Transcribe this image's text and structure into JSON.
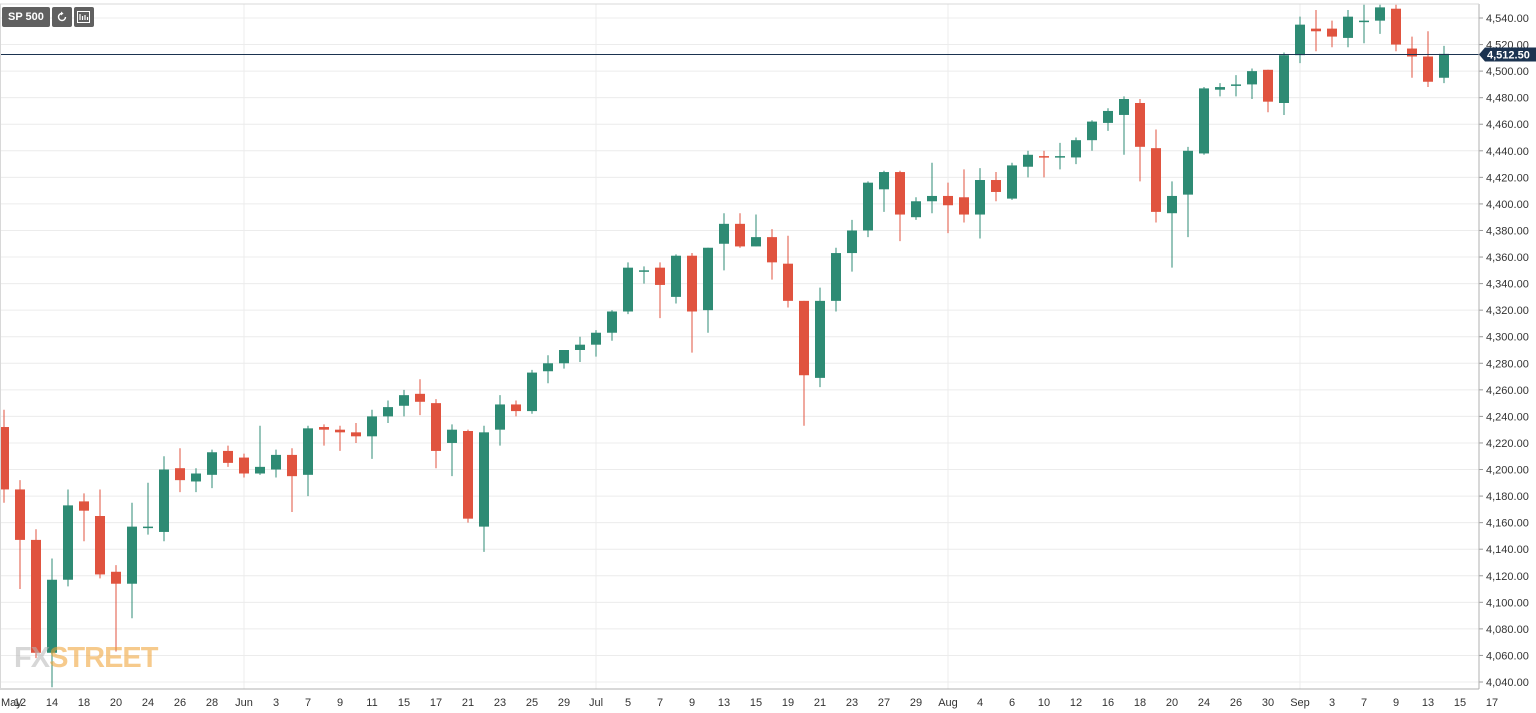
{
  "toolbar": {
    "symbol": "SP 500",
    "refresh_icon": "refresh-icon",
    "chart_type_icon": "chart-type-icon"
  },
  "logo": {
    "part1": "FX",
    "part2": "STREET"
  },
  "colors": {
    "bull": "#2e8b74",
    "bear": "#e0533f",
    "price_line": "#1b3350",
    "price_label_bg": "#1b3350",
    "grid": "#ececec",
    "axis_text": "#333333"
  },
  "chart_data": {
    "type": "candlestick",
    "current_price_label": "4,512.50",
    "current_price": 4512.5,
    "ylim": [
      4035,
      4552
    ],
    "grid": true,
    "y_ticks": [
      {
        "v": 4040,
        "label": "4,040.00"
      },
      {
        "v": 4060,
        "label": "4,060.00"
      },
      {
        "v": 4080,
        "label": "4,080.00"
      },
      {
        "v": 4100,
        "label": "4,100.00"
      },
      {
        "v": 4120,
        "label": "4,120.00"
      },
      {
        "v": 4140,
        "label": "4,140.00"
      },
      {
        "v": 4160,
        "label": "4,160.00"
      },
      {
        "v": 4180,
        "label": "4,180.00"
      },
      {
        "v": 4200,
        "label": "4,200.00"
      },
      {
        "v": 4220,
        "label": "4,220.00"
      },
      {
        "v": 4240,
        "label": "4,240.00"
      },
      {
        "v": 4260,
        "label": "4,260.00"
      },
      {
        "v": 4280,
        "label": "4,280.00"
      },
      {
        "v": 4300,
        "label": "4,300.00"
      },
      {
        "v": 4320,
        "label": "4,320.00"
      },
      {
        "v": 4340,
        "label": "4,340.00"
      },
      {
        "v": 4360,
        "label": "4,360.00"
      },
      {
        "v": 4380,
        "label": "4,380.00"
      },
      {
        "v": 4400,
        "label": "4,400.00"
      },
      {
        "v": 4420,
        "label": "4,420.00"
      },
      {
        "v": 4440,
        "label": "4,440.00"
      },
      {
        "v": 4460,
        "label": "4,460.00"
      },
      {
        "v": 4480,
        "label": "4,480.00"
      },
      {
        "v": 4500,
        "label": "4,500.00"
      },
      {
        "v": 4520,
        "label": "4,520.00"
      },
      {
        "v": 4540,
        "label": "4,540.00"
      }
    ],
    "x_ticks": [
      {
        "i": -0.5,
        "label": "May"
      },
      {
        "i": 1,
        "label": "12"
      },
      {
        "i": 3,
        "label": "14"
      },
      {
        "i": 5,
        "label": "18"
      },
      {
        "i": 7,
        "label": "20"
      },
      {
        "i": 9,
        "label": "24"
      },
      {
        "i": 11,
        "label": "26"
      },
      {
        "i": 13,
        "label": "28"
      },
      {
        "i": 15,
        "label": "Jun"
      },
      {
        "i": 17,
        "label": "3"
      },
      {
        "i": 19,
        "label": "7"
      },
      {
        "i": 21,
        "label": "9"
      },
      {
        "i": 23,
        "label": "11"
      },
      {
        "i": 25,
        "label": "15"
      },
      {
        "i": 27,
        "label": "17"
      },
      {
        "i": 29,
        "label": "21"
      },
      {
        "i": 31,
        "label": "23"
      },
      {
        "i": 33,
        "label": "25"
      },
      {
        "i": 35,
        "label": "29"
      },
      {
        "i": 37,
        "label": "Jul"
      },
      {
        "i": 39,
        "label": "5"
      },
      {
        "i": 41,
        "label": "7"
      },
      {
        "i": 43,
        "label": "9"
      },
      {
        "i": 45,
        "label": "13"
      },
      {
        "i": 47,
        "label": "15"
      },
      {
        "i": 49,
        "label": "19"
      },
      {
        "i": 51,
        "label": "21"
      },
      {
        "i": 53,
        "label": "23"
      },
      {
        "i": 55,
        "label": "27"
      },
      {
        "i": 57,
        "label": "29"
      },
      {
        "i": 59,
        "label": "Aug"
      },
      {
        "i": 61,
        "label": "4"
      },
      {
        "i": 63,
        "label": "6"
      },
      {
        "i": 65,
        "label": "10"
      },
      {
        "i": 67,
        "label": "12"
      },
      {
        "i": 69,
        "label": "16"
      },
      {
        "i": 71,
        "label": "18"
      },
      {
        "i": 73,
        "label": "20"
      },
      {
        "i": 75,
        "label": "24"
      },
      {
        "i": 77,
        "label": "26"
      },
      {
        "i": 79,
        "label": "30"
      },
      {
        "i": 81,
        "label": "Sep"
      },
      {
        "i": 83,
        "label": "3"
      },
      {
        "i": 85,
        "label": "7"
      },
      {
        "i": 87,
        "label": "9"
      },
      {
        "i": 89,
        "label": "13"
      },
      {
        "i": 91,
        "label": "15"
      },
      {
        "i": 93,
        "label": "17"
      }
    ],
    "month_separators": [
      15,
      37,
      59,
      81
    ],
    "candles": [
      {
        "o": 4232,
        "h": 4245,
        "l": 4175,
        "c": 4185
      },
      {
        "o": 4185,
        "h": 4192,
        "l": 4110,
        "c": 4147
      },
      {
        "o": 4147,
        "h": 4155,
        "l": 4058,
        "c": 4062
      },
      {
        "o": 4062,
        "h": 4133,
        "l": 4036,
        "c": 4117
      },
      {
        "o": 4117,
        "h": 4185,
        "l": 4112,
        "c": 4173
      },
      {
        "o": 4176,
        "h": 4182,
        "l": 4146,
        "c": 4169
      },
      {
        "o": 4165,
        "h": 4185,
        "l": 4118,
        "c": 4121
      },
      {
        "o": 4123,
        "h": 4128,
        "l": 4063,
        "c": 4114
      },
      {
        "o": 4114,
        "h": 4175,
        "l": 4088,
        "c": 4157
      },
      {
        "o": 4157,
        "h": 4190,
        "l": 4151,
        "c": 4157
      },
      {
        "o": 4153,
        "h": 4210,
        "l": 4146,
        "c": 4200
      },
      {
        "o": 4201,
        "h": 4216,
        "l": 4183,
        "c": 4192
      },
      {
        "o": 4191,
        "h": 4201,
        "l": 4183,
        "c": 4197
      },
      {
        "o": 4196,
        "h": 4215,
        "l": 4186,
        "c": 4213
      },
      {
        "o": 4214,
        "h": 4218,
        "l": 4202,
        "c": 4205
      },
      {
        "o": 4209,
        "h": 4212,
        "l": 4194,
        "c": 4197
      },
      {
        "o": 4197,
        "h": 4233,
        "l": 4196,
        "c": 4202
      },
      {
        "o": 4200,
        "h": 4215,
        "l": 4194,
        "c": 4211
      },
      {
        "o": 4211,
        "h": 4216,
        "l": 4168,
        "c": 4195
      },
      {
        "o": 4196,
        "h": 4233,
        "l": 4180,
        "c": 4231
      },
      {
        "o": 4232,
        "h": 4234,
        "l": 4218,
        "c": 4230
      },
      {
        "o": 4230,
        "h": 4233,
        "l": 4214,
        "c": 4228
      },
      {
        "o": 4228,
        "h": 4235,
        "l": 4220,
        "c": 4225
      },
      {
        "o": 4225,
        "h": 4245,
        "l": 4208,
        "c": 4240
      },
      {
        "o": 4240,
        "h": 4252,
        "l": 4235,
        "c": 4247
      },
      {
        "o": 4248,
        "h": 4260,
        "l": 4240,
        "c": 4256
      },
      {
        "o": 4257,
        "h": 4268,
        "l": 4241,
        "c": 4251
      },
      {
        "o": 4250,
        "h": 4253,
        "l": 4201,
        "c": 4214
      },
      {
        "o": 4220,
        "h": 4234,
        "l": 4195,
        "c": 4230
      },
      {
        "o": 4229,
        "h": 4230,
        "l": 4160,
        "c": 4163
      },
      {
        "o": 4157,
        "h": 4233,
        "l": 4138,
        "c": 4228
      },
      {
        "o": 4230,
        "h": 4256,
        "l": 4218,
        "c": 4249
      },
      {
        "o": 4249,
        "h": 4252,
        "l": 4240,
        "c": 4244
      },
      {
        "o": 4244,
        "h": 4275,
        "l": 4242,
        "c": 4273
      },
      {
        "o": 4274,
        "h": 4286,
        "l": 4265,
        "c": 4280
      },
      {
        "o": 4280,
        "h": 4290,
        "l": 4276,
        "c": 4290
      },
      {
        "o": 4290,
        "h": 4300,
        "l": 4281,
        "c": 4294
      },
      {
        "o": 4294,
        "h": 4305,
        "l": 4285,
        "c": 4303
      },
      {
        "o": 4303,
        "h": 4320,
        "l": 4297,
        "c": 4319
      },
      {
        "o": 4319,
        "h": 4356,
        "l": 4317,
        "c": 4352
      },
      {
        "o": 4350,
        "h": 4353,
        "l": 4340,
        "c": 4350
      },
      {
        "o": 4352,
        "h": 4356,
        "l": 4314,
        "c": 4339
      },
      {
        "o": 4330,
        "h": 4362,
        "l": 4325,
        "c": 4361
      },
      {
        "o": 4361,
        "h": 4363,
        "l": 4288,
        "c": 4319
      },
      {
        "o": 4320,
        "h": 4367,
        "l": 4303,
        "c": 4367
      },
      {
        "o": 4370,
        "h": 4393,
        "l": 4350,
        "c": 4385
      },
      {
        "o": 4385,
        "h": 4393,
        "l": 4367,
        "c": 4368
      },
      {
        "o": 4368,
        "h": 4392,
        "l": 4368,
        "c": 4375
      },
      {
        "o": 4375,
        "h": 4381,
        "l": 4343,
        "c": 4356
      },
      {
        "o": 4355,
        "h": 4376,
        "l": 4322,
        "c": 4327
      },
      {
        "o": 4327,
        "h": 4327,
        "l": 4233,
        "c": 4271
      },
      {
        "o": 4269,
        "h": 4337,
        "l": 4262,
        "c": 4327
      },
      {
        "o": 4327,
        "h": 4367,
        "l": 4319,
        "c": 4363
      },
      {
        "o": 4363,
        "h": 4388,
        "l": 4349,
        "c": 4380
      },
      {
        "o": 4380,
        "h": 4417,
        "l": 4375,
        "c": 4416
      },
      {
        "o": 4411,
        "h": 4425,
        "l": 4394,
        "c": 4424
      },
      {
        "o": 4424,
        "h": 4425,
        "l": 4372,
        "c": 4392
      },
      {
        "o": 4390,
        "h": 4405,
        "l": 4388,
        "c": 4402
      },
      {
        "o": 4402,
        "h": 4431,
        "l": 4393,
        "c": 4406
      },
      {
        "o": 4406,
        "h": 4416,
        "l": 4378,
        "c": 4399
      },
      {
        "o": 4405,
        "h": 4426,
        "l": 4386,
        "c": 4392
      },
      {
        "o": 4392,
        "h": 4427,
        "l": 4374,
        "c": 4418
      },
      {
        "o": 4418,
        "h": 4424,
        "l": 4402,
        "c": 4409
      },
      {
        "o": 4404,
        "h": 4431,
        "l": 4403,
        "c": 4429
      },
      {
        "o": 4428,
        "h": 4440,
        "l": 4420,
        "c": 4437
      },
      {
        "o": 4436,
        "h": 4440,
        "l": 4420,
        "c": 4435
      },
      {
        "o": 4436,
        "h": 4446,
        "l": 4426,
        "c": 4436
      },
      {
        "o": 4435,
        "h": 4450,
        "l": 4430,
        "c": 4448
      },
      {
        "o": 4448,
        "h": 4463,
        "l": 4440,
        "c": 4462
      },
      {
        "o": 4461,
        "h": 4472,
        "l": 4455,
        "c": 4470
      },
      {
        "o": 4467,
        "h": 4481,
        "l": 4437,
        "c": 4479
      },
      {
        "o": 4476,
        "h": 4479,
        "l": 4417,
        "c": 4443
      },
      {
        "o": 4442,
        "h": 4456,
        "l": 4386,
        "c": 4394
      },
      {
        "o": 4393,
        "h": 4417,
        "l": 4352,
        "c": 4406
      },
      {
        "o": 4407,
        "h": 4443,
        "l": 4375,
        "c": 4440
      },
      {
        "o": 4438,
        "h": 4488,
        "l": 4437,
        "c": 4487
      },
      {
        "o": 4486,
        "h": 4491,
        "l": 4481,
        "c": 4488
      },
      {
        "o": 4490,
        "h": 4497,
        "l": 4481,
        "c": 4490
      },
      {
        "o": 4490,
        "h": 4502,
        "l": 4479,
        "c": 4500
      },
      {
        "o": 4501,
        "h": 4500,
        "l": 4469,
        "c": 4477
      },
      {
        "o": 4476,
        "h": 4514,
        "l": 4467,
        "c": 4512
      },
      {
        "o": 4512,
        "h": 4541,
        "l": 4506,
        "c": 4535
      },
      {
        "o": 4532,
        "h": 4546,
        "l": 4515,
        "c": 4530
      },
      {
        "o": 4532,
        "h": 4538,
        "l": 4518,
        "c": 4526
      },
      {
        "o": 4525,
        "h": 4546,
        "l": 4518,
        "c": 4541
      },
      {
        "o": 4537,
        "h": 4550,
        "l": 4521,
        "c": 4538
      },
      {
        "o": 4538,
        "h": 4550,
        "l": 4528,
        "c": 4548
      },
      {
        "o": 4547,
        "h": 4550,
        "l": 4515,
        "c": 4520
      },
      {
        "o": 4517,
        "h": 4526,
        "l": 4495,
        "c": 4511
      },
      {
        "o": 4511,
        "h": 4530,
        "l": 4488,
        "c": 4492
      },
      {
        "o": 4495,
        "h": 4519,
        "l": 4491,
        "c": 4513
      }
    ]
  }
}
